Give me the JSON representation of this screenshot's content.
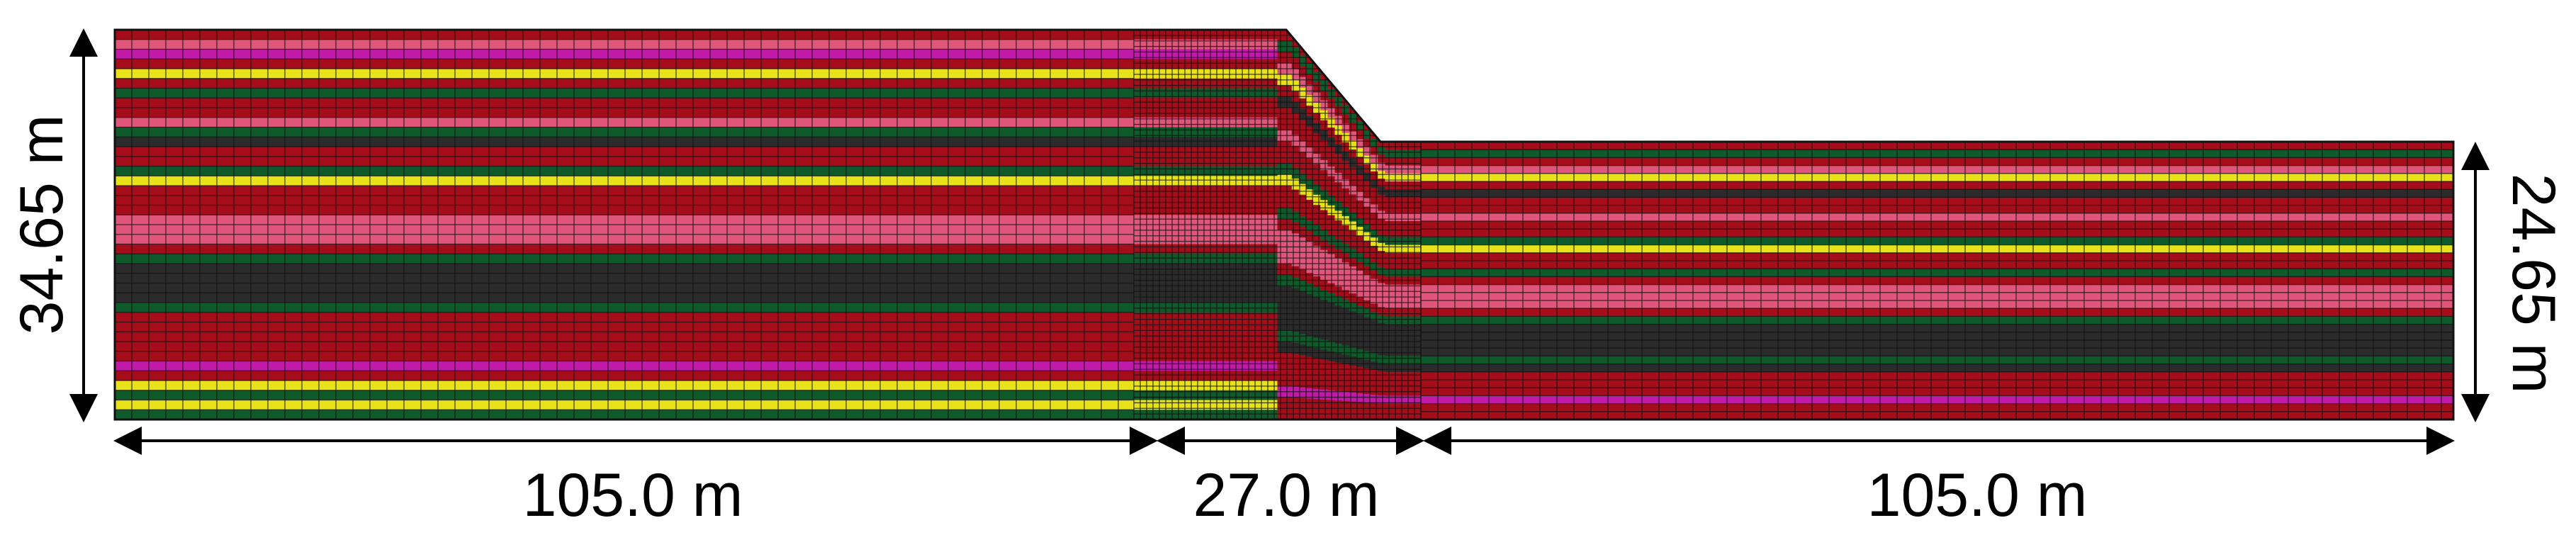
{
  "figure": {
    "dimensions": {
      "left_height": "34.65 m",
      "right_height": "24.65 m",
      "crest_width": "105.0 m",
      "slope_width": "27.0 m",
      "toe_width": "105.0 m"
    },
    "colors": {
      "red": "#a50d1a",
      "pink": "#e0557a",
      "green": "#0f5a2a",
      "dark": "#2b2b2b",
      "yellow": "#e8e21a",
      "magenta": "#c21aa8",
      "mesh_line": "#111111"
    },
    "layers_left": [
      "red",
      "pink",
      "magenta",
      "red",
      "yellow",
      "red",
      "green",
      "red",
      "red",
      "pink",
      "green",
      "dark",
      "red",
      "red",
      "green",
      "yellow",
      "red",
      "red",
      "red",
      "pink",
      "pink",
      "pink",
      "red",
      "green",
      "dark",
      "dark",
      "dark",
      "dark",
      "green",
      "red",
      "red",
      "red",
      "red",
      "red",
      "magenta",
      "red",
      "yellow",
      "green",
      "yellow",
      "green"
    ],
    "layers_right": [
      "red",
      "green",
      "red",
      "pink",
      "yellow",
      "red",
      "dark",
      "red",
      "red",
      "pink",
      "red",
      "red",
      "green",
      "yellow",
      "red",
      "red",
      "green",
      "red",
      "pink",
      "pink",
      "pink",
      "red",
      "green",
      "dark",
      "dark",
      "dark",
      "dark",
      "green",
      "dark",
      "red",
      "red",
      "red",
      "magenta",
      "red",
      "red"
    ]
  }
}
